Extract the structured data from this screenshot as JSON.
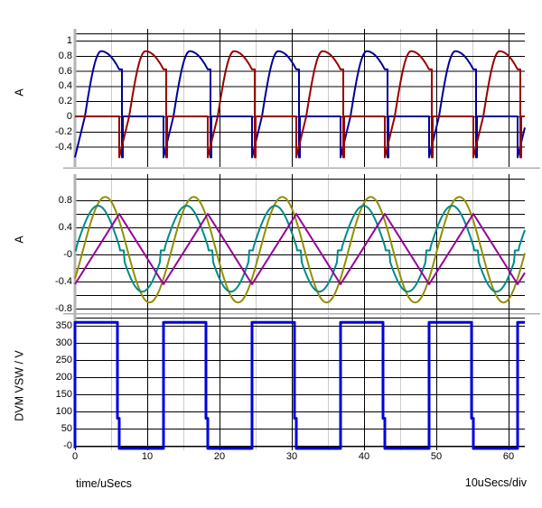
{
  "footer": {
    "xlabel": "time/uSecs",
    "per_div": "10uSecs/div"
  },
  "chart_data": [
    {
      "type": "line",
      "panel": "top",
      "ylabel": "A",
      "x_unit": "uSecs",
      "xlim": [
        0,
        62.25
      ],
      "ylim": [
        -0.56,
        1.06
      ],
      "grid": true,
      "xticks": [
        {
          "v": 0,
          "label": "0"
        },
        {
          "v": 10,
          "label": "10"
        },
        {
          "v": 20,
          "label": "20"
        },
        {
          "v": 30,
          "label": "30"
        },
        {
          "v": 40,
          "label": "40"
        },
        {
          "v": 50,
          "label": "50"
        },
        {
          "v": 60,
          "label": "60"
        }
      ],
      "xminor": [
        5,
        15,
        25,
        35,
        45,
        55
      ],
      "ygrid": [
        1,
        0.8,
        0.6,
        0.4,
        0.2,
        0,
        -0.2,
        -0.4
      ],
      "yticks": [
        {
          "v": 1,
          "label": "1"
        },
        {
          "v": 0.8,
          "label": "0.8"
        },
        {
          "v": 0.6,
          "label": "0.6"
        },
        {
          "v": 0.4,
          "label": "0.4"
        },
        {
          "v": 0.2,
          "label": "0.2"
        },
        {
          "v": 0,
          "label": "0"
        },
        {
          "v": -0.2,
          "label": "-0.2"
        },
        {
          "v": -0.4,
          "label": "-0.4"
        }
      ],
      "series": [
        {
          "name": "rectifier-current-a",
          "color": "#000099",
          "shape": "rectifier_hump",
          "period": 12.25,
          "conduction_start": 0,
          "conduction_len": 6.125,
          "start_val": -0.54,
          "peak": 0.86,
          "end_val": 0.62
        },
        {
          "name": "rectifier-current-b",
          "color": "#990000",
          "shape": "rectifier_hump",
          "period": 12.25,
          "conduction_start": 6.125,
          "conduction_len": 6.125,
          "start_val": -0.54,
          "peak": 0.86,
          "end_val": 0.62
        }
      ]
    },
    {
      "type": "line",
      "panel": "middle",
      "ylabel": "A",
      "x_unit": "uSecs",
      "xlim": [
        0,
        62.25
      ],
      "ylim": [
        -0.9,
        0.95
      ],
      "grid": true,
      "xminor": [
        5,
        15,
        25,
        35,
        45,
        55
      ],
      "ygrid": [
        0.8,
        0.6,
        0.4,
        0.2,
        0,
        -0.2,
        -0.4,
        -0.6,
        -0.8
      ],
      "yticks": [
        {
          "v": 0.8,
          "label": "0.8"
        },
        {
          "v": 0.4,
          "label": "0.4"
        },
        {
          "v": 0,
          "label": "-0"
        },
        {
          "v": -0.4,
          "label": "-0.4"
        },
        {
          "v": -0.8,
          "label": "-0.8"
        }
      ],
      "series": [
        {
          "name": "winding-current-a",
          "color": "#909000",
          "shape": "sine",
          "period": 12.25,
          "offset": 0.07,
          "amplitude": 0.78,
          "zero_rising_t": 1.125
        },
        {
          "name": "winding-current-b",
          "color": "#008b8b",
          "shape": "sine",
          "period": 12.25,
          "offset": 0.085,
          "amplitude": 0.635,
          "zero_rising_t": 0.125,
          "step_clamp": {
            "band": 0.1,
            "level": 0.06
          }
        },
        {
          "name": "magnetizing-current",
          "color": "#990099",
          "shape": "triangle",
          "period": 12.25,
          "trough": -0.44,
          "peak": 0.6,
          "t_trough": 0
        }
      ]
    },
    {
      "type": "line",
      "panel": "bottom",
      "ylabel": "DVM VSW / V",
      "x_unit": "uSecs",
      "xlim": [
        0,
        62.25
      ],
      "ylim": [
        -15,
        375
      ],
      "grid": true,
      "xminor": [
        5,
        15,
        25,
        35,
        45,
        55
      ],
      "ygrid": [
        350,
        300,
        250,
        200,
        150,
        100,
        50
      ],
      "yticks": [
        {
          "v": 350,
          "label": "350"
        },
        {
          "v": 300,
          "label": "300"
        },
        {
          "v": 250,
          "label": "250"
        },
        {
          "v": 200,
          "label": "200"
        },
        {
          "v": 150,
          "label": "150"
        },
        {
          "v": 100,
          "label": "100"
        },
        {
          "v": 50,
          "label": "50"
        },
        {
          "v": 0,
          "label": "-0"
        }
      ],
      "series": [
        {
          "name": "switch-node-voltage",
          "color": "#0000dd",
          "shape": "square",
          "period": 12.25,
          "high": 360,
          "low": -8,
          "t_rise": 0,
          "t_fall": 5.875,
          "fall_shelf": 80
        }
      ]
    }
  ]
}
